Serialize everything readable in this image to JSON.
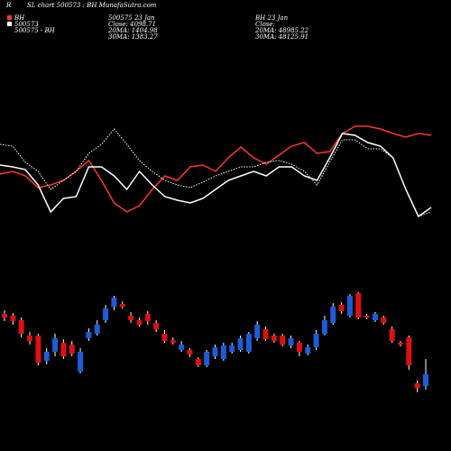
{
  "header": {
    "corner": "R",
    "title": "SL chart 500573 : BH MunafaSutra.com"
  },
  "legend": [
    {
      "label": "BH",
      "color": "#ff3333"
    },
    {
      "label": "500573",
      "color": "#ffffff"
    },
    {
      "label": "500575 - BH"
    }
  ],
  "info_left": [
    "500575 23 Jan",
    "Close: 4098.71",
    "20MA: 1404.98",
    "30MA: 1383.27"
  ],
  "info_right": [
    "BH 23 Jan",
    "Close:",
    "20MA: 48985.22",
    "30MA: 48125.91"
  ],
  "chart_data": [
    {
      "type": "line",
      "ylim": [
        0,
        130
      ],
      "series": [
        {
          "color": "#ff3333",
          "style": "solid",
          "values": [
            67,
            70,
            65,
            52,
            55,
            60,
            70,
            82,
            60,
            35,
            25,
            32,
            50,
            65,
            60,
            75,
            77,
            70,
            85,
            97,
            85,
            78,
            88,
            98,
            102,
            90,
            92,
            112,
            120,
            120,
            117,
            112,
            108,
            112,
            110
          ]
        },
        {
          "color": "#ffffff",
          "style": "solid",
          "values": [
            77,
            75,
            72,
            55,
            25,
            40,
            42,
            75,
            75,
            65,
            50,
            70,
            55,
            42,
            38,
            35,
            40,
            50,
            60,
            65,
            70,
            65,
            75,
            75,
            65,
            60,
            85,
            112,
            110,
            102,
            98,
            85,
            50,
            20,
            30
          ]
        },
        {
          "color": "#ffffff",
          "style": "dotted",
          "values": [
            100,
            98,
            80,
            70,
            50,
            60,
            70,
            90,
            100,
            117,
            100,
            82,
            70,
            60,
            55,
            52,
            58,
            65,
            70,
            75,
            75,
            80,
            82,
            78,
            70,
            55,
            80,
            105,
            105,
            95,
            95,
            85,
            50,
            20,
            25
          ]
        }
      ]
    },
    {
      "type": "candlestick",
      "ylim": [
        0,
        130
      ],
      "up_color": "#1e5bd8",
      "down_color": "#e01010",
      "open": [
        102,
        100,
        95,
        78,
        78,
        50,
        60,
        70,
        68,
        38,
        75,
        80,
        95,
        110,
        113,
        100,
        95,
        102,
        92,
        80,
        73,
        62,
        62,
        52,
        45,
        55,
        52,
        60,
        62,
        60,
        75,
        85,
        78,
        78,
        67,
        70,
        58,
        65,
        80,
        92,
        112,
        100,
        125,
        100,
        95,
        98,
        85,
        70,
        76,
        25,
        22
      ],
      "close": [
        98,
        94,
        80,
        72,
        48,
        60,
        75,
        55,
        58,
        60,
        82,
        90,
        108,
        120,
        110,
        95,
        90,
        94,
        85,
        72,
        70,
        68,
        57,
        45,
        60,
        65,
        67,
        67,
        75,
        80,
        90,
        74,
        72,
        68,
        75,
        60,
        65,
        80,
        95,
        110,
        105,
        122,
        98,
        98,
        102,
        92,
        72,
        68,
        45,
        20,
        35
      ],
      "high": [
        106,
        103,
        98,
        82,
        80,
        64,
        80,
        74,
        72,
        64,
        86,
        95,
        112,
        122,
        116,
        104,
        98,
        105,
        95,
        84,
        76,
        72,
        64,
        54,
        62,
        68,
        70,
        70,
        78,
        82,
        94,
        88,
        80,
        80,
        78,
        72,
        68,
        84,
        100,
        114,
        115,
        124,
        126,
        102,
        104,
        100,
        88,
        72,
        78,
        28,
        52
      ],
      "low": [
        94,
        90,
        76,
        68,
        45,
        46,
        55,
        52,
        55,
        36,
        72,
        78,
        92,
        106,
        108,
        92,
        88,
        90,
        82,
        70,
        68,
        60,
        54,
        43,
        43,
        52,
        50,
        58,
        60,
        58,
        72,
        72,
        70,
        66,
        64,
        55,
        56,
        62,
        78,
        90,
        102,
        98,
        96,
        96,
        93,
        90,
        70,
        66,
        40,
        15,
        18
      ]
    }
  ]
}
